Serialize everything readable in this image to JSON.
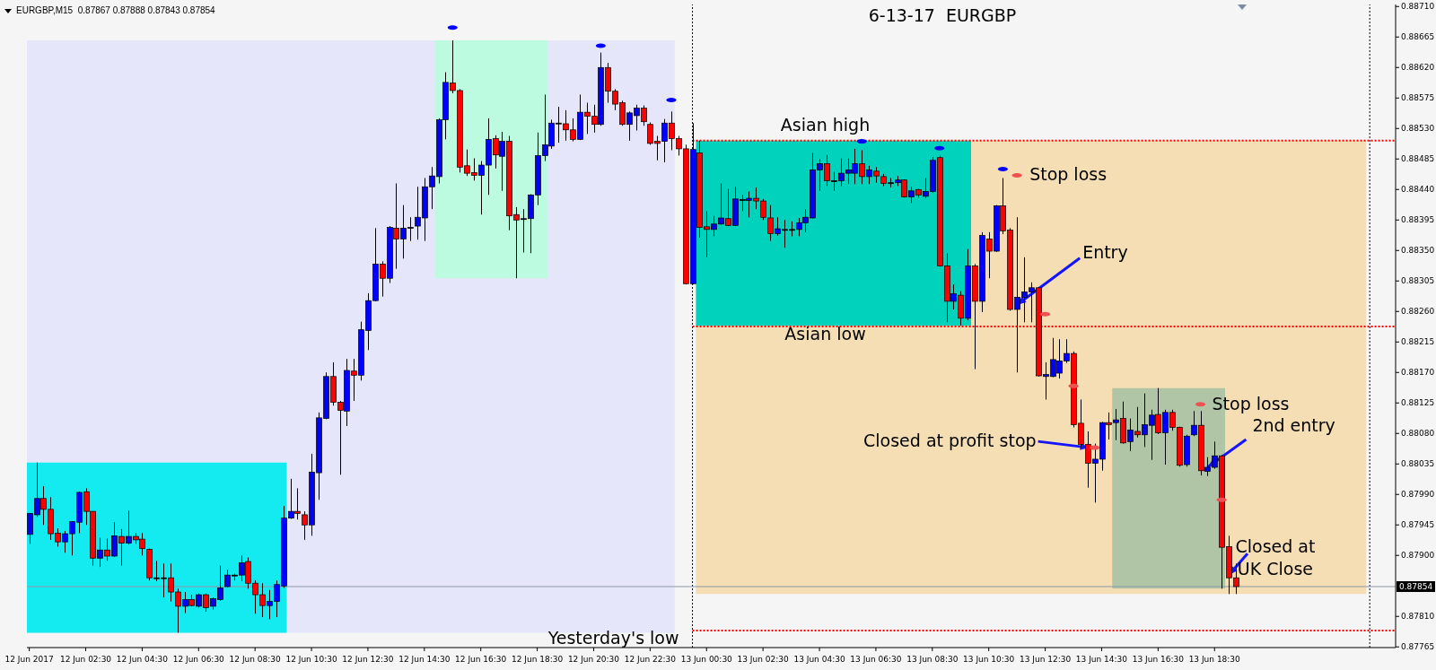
{
  "chart_data": {
    "type": "candlestick",
    "title": "6-13-17  EURGBP",
    "annotations": [
      "EURGBP,M15  0.87867 0.87888 0.87843 0.87854",
      {
        "text": "Entry",
        "x": "2017-06-13T11:30",
        "y": 0.8827
      },
      {
        "text": "Stop loss",
        "x": "2017-06-13T11:30",
        "y": 0.88461
      },
      {
        "text": "Stop loss",
        "x": "2017-06-13T18:00",
        "y": 0.88123
      },
      {
        "text": "Closed at profit stop",
        "x": "2017-06-13T14:15",
        "y": 0.88059
      },
      {
        "text": "2nd entry",
        "x": "2017-06-13T18:15",
        "y": 0.8803
      },
      {
        "text": "Closed at UK Close",
        "x": "2017-06-13T19:00",
        "y": 0.87871
      }
    ],
    "x": [
      "2017-06-12T00:30",
      "2017-06-12T00:45",
      "2017-06-12T01:00",
      "2017-06-12T01:15",
      "2017-06-12T01:30",
      "2017-06-12T01:45",
      "2017-06-12T02:00",
      "2017-06-12T02:15",
      "2017-06-12T02:30",
      "2017-06-12T02:45",
      "2017-06-12T03:00",
      "2017-06-12T03:15",
      "2017-06-12T03:30",
      "2017-06-12T03:45",
      "2017-06-12T04:00",
      "2017-06-12T04:15",
      "2017-06-12T04:30",
      "2017-06-12T04:45",
      "2017-06-12T05:00",
      "2017-06-12T05:15",
      "2017-06-12T05:30",
      "2017-06-12T05:45",
      "2017-06-12T06:00",
      "2017-06-12T06:15",
      "2017-06-12T06:30",
      "2017-06-12T06:45",
      "2017-06-12T07:00",
      "2017-06-12T07:15",
      "2017-06-12T07:30",
      "2017-06-12T07:45",
      "2017-06-12T08:00",
      "2017-06-12T08:15",
      "2017-06-12T08:30",
      "2017-06-12T08:45",
      "2017-06-12T09:00",
      "2017-06-12T09:15",
      "2017-06-12T09:30",
      "2017-06-12T09:45",
      "2017-06-12T10:00",
      "2017-06-12T10:15",
      "2017-06-12T10:30",
      "2017-06-12T10:45",
      "2017-06-12T11:00",
      "2017-06-12T11:15",
      "2017-06-12T11:30",
      "2017-06-12T11:45",
      "2017-06-12T12:00",
      "2017-06-12T12:15",
      "2017-06-12T12:30",
      "2017-06-12T12:45",
      "2017-06-12T13:00",
      "2017-06-12T13:15",
      "2017-06-12T13:30",
      "2017-06-12T13:45",
      "2017-06-12T14:00",
      "2017-06-12T14:15",
      "2017-06-12T14:30",
      "2017-06-12T14:45",
      "2017-06-12T15:00",
      "2017-06-12T15:15",
      "2017-06-12T15:30",
      "2017-06-12T15:45",
      "2017-06-12T16:00",
      "2017-06-12T16:15",
      "2017-06-12T16:30",
      "2017-06-12T16:45",
      "2017-06-12T17:00",
      "2017-06-12T17:15",
      "2017-06-12T17:30",
      "2017-06-12T17:45",
      "2017-06-12T18:00",
      "2017-06-12T18:15",
      "2017-06-12T18:30",
      "2017-06-12T18:45",
      "2017-06-12T19:00",
      "2017-06-12T19:15",
      "2017-06-12T19:30",
      "2017-06-12T19:45",
      "2017-06-12T20:00",
      "2017-06-12T20:15",
      "2017-06-12T20:30",
      "2017-06-12T20:45",
      "2017-06-12T21:00",
      "2017-06-12T21:15",
      "2017-06-12T21:30",
      "2017-06-12T21:45",
      "2017-06-12T22:00",
      "2017-06-12T22:15",
      "2017-06-12T22:30",
      "2017-06-12T22:45",
      "2017-06-12T23:00",
      "2017-06-12T23:15",
      "2017-06-12T23:30",
      "2017-06-12T23:45",
      "2017-06-13T00:00",
      "2017-06-13T00:15",
      "2017-06-13T00:30",
      "2017-06-13T00:45",
      "2017-06-13T01:00",
      "2017-06-13T01:15",
      "2017-06-13T01:30",
      "2017-06-13T01:45",
      "2017-06-13T02:00",
      "2017-06-13T02:15",
      "2017-06-13T02:30",
      "2017-06-13T02:45",
      "2017-06-13T03:00",
      "2017-06-13T03:15",
      "2017-06-13T03:30",
      "2017-06-13T03:45",
      "2017-06-13T04:00",
      "2017-06-13T04:15",
      "2017-06-13T04:30",
      "2017-06-13T04:45",
      "2017-06-13T05:00",
      "2017-06-13T05:15",
      "2017-06-13T05:30",
      "2017-06-13T05:45",
      "2017-06-13T06:00",
      "2017-06-13T06:15",
      "2017-06-13T06:30",
      "2017-06-13T06:45",
      "2017-06-13T07:00",
      "2017-06-13T07:15",
      "2017-06-13T07:30",
      "2017-06-13T07:45",
      "2017-06-13T08:00",
      "2017-06-13T08:15",
      "2017-06-13T08:30",
      "2017-06-13T08:45",
      "2017-06-13T09:00",
      "2017-06-13T09:15",
      "2017-06-13T09:30",
      "2017-06-13T09:45",
      "2017-06-13T10:00",
      "2017-06-13T10:15",
      "2017-06-13T10:30",
      "2017-06-13T10:45",
      "2017-06-13T11:00",
      "2017-06-13T11:15",
      "2017-06-13T11:30",
      "2017-06-13T11:45",
      "2017-06-13T12:00",
      "2017-06-13T12:15",
      "2017-06-13T12:30",
      "2017-06-13T12:45",
      "2017-06-13T13:00",
      "2017-06-13T13:15",
      "2017-06-13T13:30",
      "2017-06-13T13:45",
      "2017-06-13T14:00",
      "2017-06-13T14:15",
      "2017-06-13T14:30",
      "2017-06-13T14:45",
      "2017-06-13T15:00",
      "2017-06-13T15:15",
      "2017-06-13T15:30",
      "2017-06-13T15:45",
      "2017-06-13T16:00",
      "2017-06-13T16:15",
      "2017-06-13T16:30",
      "2017-06-13T16:45",
      "2017-06-13T17:00",
      "2017-06-13T17:15",
      "2017-06-13T17:30",
      "2017-06-13T17:45",
      "2017-06-13T18:00",
      "2017-06-13T18:15",
      "2017-06-13T18:30",
      "2017-06-13T18:45",
      "2017-06-13T19:00",
      "2017-06-13T19:15"
    ],
    "ohlc": [
      [
        0.87931,
        0.87962,
        0.87917,
        0.87962
      ],
      [
        0.8796,
        0.88037,
        0.87957,
        0.87984
      ],
      [
        0.87984,
        0.88002,
        0.87945,
        0.87968
      ],
      [
        0.87968,
        0.87986,
        0.87923,
        0.87932
      ],
      [
        0.87933,
        0.8794,
        0.87913,
        0.8792
      ],
      [
        0.8792,
        0.87936,
        0.87904,
        0.87932
      ],
      [
        0.87932,
        0.8795,
        0.879,
        0.8795
      ],
      [
        0.87949,
        0.87994,
        0.87933,
        0.87993
      ],
      [
        0.87994,
        0.87999,
        0.87945,
        0.87965
      ],
      [
        0.87965,
        0.87965,
        0.87885,
        0.87896
      ],
      [
        0.87896,
        0.87926,
        0.87883,
        0.87908
      ],
      [
        0.87908,
        0.87925,
        0.87892,
        0.87899
      ],
      [
        0.87899,
        0.87949,
        0.87898,
        0.87929
      ],
      [
        0.87928,
        0.87939,
        0.87885,
        0.87918
      ],
      [
        0.87918,
        0.87966,
        0.87916,
        0.87928
      ],
      [
        0.87928,
        0.87933,
        0.87917,
        0.87923
      ],
      [
        0.87924,
        0.87933,
        0.879,
        0.8791
      ],
      [
        0.87909,
        0.8791,
        0.87863,
        0.87867
      ],
      [
        0.87867,
        0.87892,
        0.87862,
        0.87867
      ],
      [
        0.87867,
        0.87888,
        0.87838,
        0.87867
      ],
      [
        0.87867,
        0.87888,
        0.87832,
        0.87846
      ],
      [
        0.87846,
        0.87851,
        0.87786,
        0.87825
      ],
      [
        0.87825,
        0.87846,
        0.87815,
        0.87835
      ],
      [
        0.87835,
        0.87842,
        0.87825,
        0.87826
      ],
      [
        0.87825,
        0.87844,
        0.87823,
        0.87842
      ],
      [
        0.87842,
        0.87844,
        0.87817,
        0.87823
      ],
      [
        0.87825,
        0.87838,
        0.8782,
        0.87836
      ],
      [
        0.87835,
        0.87885,
        0.87833,
        0.87852
      ],
      [
        0.87854,
        0.87879,
        0.87853,
        0.87871
      ],
      [
        0.87871,
        0.87873,
        0.87863,
        0.87871
      ],
      [
        0.87871,
        0.879,
        0.87862,
        0.87889
      ],
      [
        0.87891,
        0.87897,
        0.87851,
        0.87859
      ],
      [
        0.87859,
        0.87863,
        0.87814,
        0.87842
      ],
      [
        0.87842,
        0.87859,
        0.87809,
        0.87826
      ],
      [
        0.87826,
        0.87849,
        0.87806,
        0.87832
      ],
      [
        0.87832,
        0.87863,
        0.87809,
        0.87857
      ],
      [
        0.87855,
        0.87973,
        0.87852,
        0.87955
      ],
      [
        0.87955,
        0.88013,
        0.87954,
        0.87965
      ],
      [
        0.87965,
        0.87999,
        0.87953,
        0.87962
      ],
      [
        0.8796,
        0.87965,
        0.87923,
        0.87945
      ],
      [
        0.87945,
        0.8805,
        0.87929,
        0.88023
      ],
      [
        0.88022,
        0.88111,
        0.87982,
        0.88103
      ],
      [
        0.88102,
        0.8817,
        0.88101,
        0.88164
      ],
      [
        0.88164,
        0.88185,
        0.88121,
        0.88126
      ],
      [
        0.88126,
        0.88128,
        0.88019,
        0.88114
      ],
      [
        0.88113,
        0.8819,
        0.88091,
        0.88173
      ],
      [
        0.88172,
        0.8819,
        0.88128,
        0.88166
      ],
      [
        0.88166,
        0.88245,
        0.88158,
        0.88233
      ],
      [
        0.88232,
        0.88287,
        0.88203,
        0.88276
      ],
      [
        0.88276,
        0.88383,
        0.88275,
        0.8833
      ],
      [
        0.8833,
        0.88334,
        0.88282,
        0.88309
      ],
      [
        0.88309,
        0.88386,
        0.88302,
        0.88384
      ],
      [
        0.88383,
        0.88449,
        0.88323,
        0.88367
      ],
      [
        0.88367,
        0.88417,
        0.88338,
        0.88383
      ],
      [
        0.88384,
        0.88399,
        0.88364,
        0.88384
      ],
      [
        0.88386,
        0.88444,
        0.88366,
        0.88399
      ],
      [
        0.88398,
        0.88457,
        0.88364,
        0.88444
      ],
      [
        0.88444,
        0.88473,
        0.88411,
        0.8846
      ],
      [
        0.88459,
        0.88545,
        0.88449,
        0.88543
      ],
      [
        0.88543,
        0.88613,
        0.88514,
        0.88598
      ],
      [
        0.88597,
        0.8866,
        0.88582,
        0.88586
      ],
      [
        0.88586,
        0.88588,
        0.88465,
        0.88473
      ],
      [
        0.88475,
        0.88499,
        0.8846,
        0.88464
      ],
      [
        0.88465,
        0.88486,
        0.88453,
        0.88461
      ],
      [
        0.88461,
        0.88482,
        0.88403,
        0.88476
      ],
      [
        0.88476,
        0.88545,
        0.88432,
        0.88514
      ],
      [
        0.88515,
        0.8852,
        0.88471,
        0.88491
      ],
      [
        0.88489,
        0.88525,
        0.88438,
        0.88511
      ],
      [
        0.88511,
        0.88519,
        0.8838,
        0.88401
      ],
      [
        0.88403,
        0.88414,
        0.88309,
        0.88395
      ],
      [
        0.88397,
        0.88411,
        0.88347,
        0.88397
      ],
      [
        0.88397,
        0.88433,
        0.88346,
        0.88432
      ],
      [
        0.88432,
        0.88524,
        0.88417,
        0.8849
      ],
      [
        0.8849,
        0.8858,
        0.88482,
        0.88506
      ],
      [
        0.88504,
        0.88543,
        0.885,
        0.88538
      ],
      [
        0.88538,
        0.88562,
        0.88509,
        0.88538
      ],
      [
        0.88537,
        0.88557,
        0.88512,
        0.88528
      ],
      [
        0.88528,
        0.88545,
        0.88511,
        0.88514
      ],
      [
        0.88514,
        0.8858,
        0.88513,
        0.88554
      ],
      [
        0.88554,
        0.88568,
        0.88522,
        0.88548
      ],
      [
        0.88548,
        0.88565,
        0.88524,
        0.88536
      ],
      [
        0.88536,
        0.88642,
        0.88534,
        0.8862
      ],
      [
        0.8862,
        0.88627,
        0.88568,
        0.88585
      ],
      [
        0.88585,
        0.88588,
        0.88557,
        0.88566
      ],
      [
        0.88568,
        0.88571,
        0.88534,
        0.88536
      ],
      [
        0.88536,
        0.88555,
        0.88512,
        0.88553
      ],
      [
        0.88549,
        0.88565,
        0.88527,
        0.8856
      ],
      [
        0.8856,
        0.88564,
        0.88534,
        0.8854
      ],
      [
        0.88536,
        0.88539,
        0.88506,
        0.88508
      ],
      [
        0.88511,
        0.88519,
        0.88483,
        0.88508
      ],
      [
        0.88511,
        0.88544,
        0.8848,
        0.88538
      ],
      [
        0.88538,
        0.88555,
        0.88498,
        0.88515
      ],
      [
        0.88515,
        0.88519,
        0.8849,
        0.885
      ],
      [
        0.885,
        0.88506,
        0.883,
        0.88301
      ],
      [
        0.88301,
        0.88538,
        0.883,
        0.88499
      ],
      [
        0.88494,
        0.88512,
        0.88369,
        0.88384
      ],
      [
        0.88385,
        0.88408,
        0.8834,
        0.88381
      ],
      [
        0.88381,
        0.88401,
        0.88371,
        0.88389
      ],
      [
        0.88389,
        0.88449,
        0.88388,
        0.88398
      ],
      [
        0.88397,
        0.88441,
        0.88386,
        0.88387
      ],
      [
        0.88387,
        0.88444,
        0.88386,
        0.88426
      ],
      [
        0.88425,
        0.88432,
        0.88408,
        0.88425
      ],
      [
        0.88424,
        0.88437,
        0.88399,
        0.88427
      ],
      [
        0.88427,
        0.88443,
        0.88411,
        0.88423
      ],
      [
        0.88423,
        0.88426,
        0.88395,
        0.88399
      ],
      [
        0.88398,
        0.88417,
        0.88364,
        0.88375
      ],
      [
        0.88375,
        0.88399,
        0.88372,
        0.88382
      ],
      [
        0.88381,
        0.88395,
        0.88354,
        0.88381
      ],
      [
        0.88381,
        0.88393,
        0.88371,
        0.88381
      ],
      [
        0.88381,
        0.88398,
        0.88371,
        0.88391
      ],
      [
        0.88391,
        0.88411,
        0.88377,
        0.88399
      ],
      [
        0.88398,
        0.88494,
        0.88397,
        0.88469
      ],
      [
        0.88469,
        0.88485,
        0.88438,
        0.88478
      ],
      [
        0.88478,
        0.88491,
        0.88445,
        0.88453
      ],
      [
        0.88453,
        0.88466,
        0.88438,
        0.88453
      ],
      [
        0.88453,
        0.88486,
        0.88445,
        0.88464
      ],
      [
        0.88464,
        0.88486,
        0.88448,
        0.88469
      ],
      [
        0.88464,
        0.885,
        0.88448,
        0.88478
      ],
      [
        0.88478,
        0.88498,
        0.88448,
        0.88459
      ],
      [
        0.88459,
        0.88475,
        0.88448,
        0.88469
      ],
      [
        0.88467,
        0.88473,
        0.8845,
        0.8846
      ],
      [
        0.88459,
        0.88463,
        0.88445,
        0.88449
      ],
      [
        0.8845,
        0.88457,
        0.88443,
        0.8845
      ],
      [
        0.8845,
        0.8846,
        0.88445,
        0.88454
      ],
      [
        0.88454,
        0.88455,
        0.88428,
        0.88429
      ],
      [
        0.88429,
        0.88444,
        0.8842,
        0.88438
      ],
      [
        0.8844,
        0.88441,
        0.88428,
        0.88432
      ],
      [
        0.8843,
        0.88457,
        0.88427,
        0.88437
      ],
      [
        0.88437,
        0.88488,
        0.88435,
        0.88483
      ],
      [
        0.88487,
        0.8849,
        0.88326,
        0.88327
      ],
      [
        0.88327,
        0.88346,
        0.88244,
        0.88275
      ],
      [
        0.88275,
        0.883,
        0.88263,
        0.88286
      ],
      [
        0.88284,
        0.8829,
        0.88239,
        0.8825
      ],
      [
        0.8825,
        0.88352,
        0.88247,
        0.88327
      ],
      [
        0.88327,
        0.8833,
        0.88175,
        0.88275
      ],
      [
        0.88275,
        0.88377,
        0.88259,
        0.88372
      ],
      [
        0.88367,
        0.88377,
        0.88309,
        0.88349
      ],
      [
        0.88349,
        0.88417,
        0.88348,
        0.88416
      ],
      [
        0.88416,
        0.88457,
        0.88374,
        0.88379
      ],
      [
        0.8838,
        0.88383,
        0.88261,
        0.88263
      ],
      [
        0.88263,
        0.88399,
        0.8817,
        0.88281
      ],
      [
        0.88281,
        0.8834,
        0.88244,
        0.88289
      ],
      [
        0.88289,
        0.88303,
        0.88244,
        0.88295
      ],
      [
        0.88295,
        0.88296,
        0.88164,
        0.88165
      ],
      [
        0.88164,
        0.88185,
        0.8813,
        0.88167
      ],
      [
        0.88164,
        0.88221,
        0.88163,
        0.88189
      ],
      [
        0.88169,
        0.88219,
        0.88161,
        0.88187
      ],
      [
        0.88187,
        0.88219,
        0.88184,
        0.88198
      ],
      [
        0.88198,
        0.88201,
        0.88089,
        0.88093
      ],
      [
        0.88095,
        0.8813,
        0.88059,
        0.88064
      ],
      [
        0.88064,
        0.88083,
        0.88,
        0.88036
      ],
      [
        0.88036,
        0.88065,
        0.87978,
        0.88042
      ],
      [
        0.88042,
        0.88097,
        0.88025,
        0.88096
      ],
      [
        0.88096,
        0.88111,
        0.88071,
        0.88093
      ],
      [
        0.88096,
        0.88116,
        0.8807,
        0.881
      ],
      [
        0.88102,
        0.88127,
        0.88065,
        0.88066
      ],
      [
        0.88068,
        0.88102,
        0.88054,
        0.88085
      ],
      [
        0.88083,
        0.88119,
        0.88074,
        0.88078
      ],
      [
        0.88078,
        0.88139,
        0.8806,
        0.88093
      ],
      [
        0.88092,
        0.88115,
        0.88041,
        0.88107
      ],
      [
        0.88108,
        0.88147,
        0.88079,
        0.88081
      ],
      [
        0.88081,
        0.88115,
        0.88034,
        0.88111
      ],
      [
        0.88111,
        0.88115,
        0.88084,
        0.88089
      ],
      [
        0.88089,
        0.8809,
        0.88031,
        0.88033
      ],
      [
        0.88034,
        0.88078,
        0.88031,
        0.88076
      ],
      [
        0.88078,
        0.88113,
        0.88076,
        0.88092
      ],
      [
        0.88092,
        0.88113,
        0.88018,
        0.88025
      ],
      [
        0.88024,
        0.88045,
        0.88017,
        0.8803
      ],
      [
        0.8803,
        0.88068,
        0.88028,
        0.88047
      ],
      [
        0.88047,
        0.88048,
        0.87851,
        0.87912
      ],
      [
        0.87913,
        0.87929,
        0.87843,
        0.87867
      ],
      [
        0.87867,
        0.87888,
        0.87843,
        0.87854
      ]
    ],
    "colors": [
      "#0000ff",
      "#0000ff",
      "#ff0000",
      "#ff0000",
      "#ff0000",
      "#0000ff",
      "#0000ff",
      "#0000ff",
      "#ff0000",
      "#ff0000",
      "#0000ff",
      "#ff0000",
      "#0000ff",
      "#ff0000",
      "#0000ff",
      "#ff0000",
      "#ff0000",
      "#ff0000",
      "#000000",
      "#000000",
      "#ff0000",
      "#ff0000",
      "#0000ff",
      "#ff0000",
      "#0000ff",
      "#ff0000",
      "#0000ff",
      "#0000ff",
      "#0000ff",
      "#000000",
      "#0000ff",
      "#ff0000",
      "#ff0000",
      "#ff0000",
      "#0000ff",
      "#0000ff",
      "#0000ff",
      "#0000ff",
      "#ff0000",
      "#ff0000",
      "#0000ff",
      "#0000ff",
      "#0000ff",
      "#ff0000",
      "#ff0000",
      "#0000ff",
      "#ff0000",
      "#0000ff",
      "#0000ff",
      "#0000ff",
      "#ff0000",
      "#0000ff",
      "#ff0000",
      "#0000ff",
      "#000000",
      "#0000ff",
      "#0000ff",
      "#0000ff",
      "#0000ff",
      "#0000ff",
      "#ff0000",
      "#ff0000",
      "#ff0000",
      "#ff0000",
      "#0000ff",
      "#0000ff",
      "#ff0000",
      "#0000ff",
      "#ff0000",
      "#ff0000",
      "#000000",
      "#0000ff",
      "#0000ff",
      "#0000ff",
      "#0000ff",
      "#000000",
      "#ff0000",
      "#ff0000",
      "#0000ff",
      "#ff0000",
      "#ff0000",
      "#0000ff",
      "#ff0000",
      "#ff0000",
      "#ff0000",
      "#0000ff",
      "#0000ff",
      "#ff0000",
      "#ff0000",
      "#ff0000",
      "#0000ff",
      "#ff0000",
      "#ff0000",
      "#ff0000",
      "#0000ff",
      "#ff0000",
      "#ff0000",
      "#0000ff",
      "#0000ff",
      "#ff0000",
      "#0000ff",
      "#000000",
      "#0000ff",
      "#ff0000",
      "#ff0000",
      "#ff0000",
      "#0000ff",
      "#000000",
      "#000000",
      "#0000ff",
      "#0000ff",
      "#0000ff",
      "#0000ff",
      "#ff0000",
      "#000000",
      "#0000ff",
      "#0000ff",
      "#0000ff",
      "#ff0000",
      "#0000ff",
      "#ff0000",
      "#ff0000",
      "#000000",
      "#0000ff",
      "#ff0000",
      "#0000ff",
      "#ff0000",
      "#0000ff",
      "#0000ff",
      "#ff0000",
      "#ff0000",
      "#0000ff",
      "#ff0000",
      "#0000ff",
      "#ff0000",
      "#0000ff",
      "#ff0000",
      "#0000ff",
      "#ff0000",
      "#ff0000",
      "#0000ff",
      "#0000ff",
      "#0000ff",
      "#ff0000",
      "#0000ff",
      "#0000ff",
      "#0000ff",
      "#0000ff",
      "#ff0000",
      "#ff0000",
      "#ff0000",
      "#0000ff",
      "#0000ff",
      "#ff0000",
      "#0000ff",
      "#ff0000",
      "#0000ff",
      "#ff0000",
      "#0000ff",
      "#0000ff",
      "#ff0000",
      "#0000ff",
      "#ff0000",
      "#ff0000",
      "#0000ff",
      "#0000ff",
      "#ff0000",
      "#0000ff",
      "#0000ff",
      "#ff0000",
      "#ff0000",
      "#ff0000"
    ],
    "series": [
      {
        "type": "scatter",
        "color": "#0000ff",
        "x": [
          "2017-06-12T15:30",
          "2017-06-12T20:45",
          "2017-06-12T23:15",
          "2017-06-13T06:00",
          "2017-06-13T08:45",
          "2017-06-13T11:00"
        ],
        "values": [
          0.88679,
          0.88652,
          0.88572,
          0.88511,
          0.88501,
          0.8847
        ]
      },
      {
        "type": "scatter",
        "color": "#f05050",
        "x": [
          "2017-06-13T11:30",
          "2017-06-13T12:30",
          "2017-06-13T13:30",
          "2017-06-13T14:15",
          "2017-06-13T18:00",
          "2017-06-13T18:45"
        ],
        "values": [
          0.88461,
          0.88256,
          0.8815,
          0.88059,
          0.88123,
          0.87982
        ]
      }
    ],
    "bands": [
      {
        "axis": "x",
        "from": "2017-06-12T00:30",
        "to": "2017-06-12T23:15",
        "color": "#e6e6fa"
      },
      {
        "axis": "x",
        "from": "2017-06-12T00:30",
        "to": "2017-06-12T09:30",
        "color": "#14ebf0"
      },
      {
        "axis": "x",
        "from": "2017-06-12T15:00",
        "to": "2017-06-12T18:45",
        "color": "#bdfbe0"
      },
      {
        "axis": "x",
        "from": "2017-06-13T00:15",
        "to": "2017-06-13T23:45",
        "color": "#f5deb3"
      },
      {
        "axis": "x",
        "from": "2017-06-13T00:15",
        "to": "2017-06-13T09:45",
        "color": "#00d2bc"
      },
      {
        "axis": "x",
        "from": "2017-06-13T15:00",
        "to": "2017-06-13T18:45",
        "color": "#afc5a6"
      }
    ],
    "ref_lines": [
      {
        "axis": "x",
        "value": "2017-06-13T00:00",
        "line_style": "dotted",
        "color": "#000000"
      },
      {
        "axis": "x",
        "value": "2017-06-14T00:00",
        "line_style": "dotted",
        "color": "#000000"
      },
      {
        "axis": "y",
        "value": 0.88512,
        "label": "Asian high",
        "line_style": "dotted",
        "color": "#ff0000"
      },
      {
        "axis": "y",
        "value": 0.88238,
        "label": "Asian low",
        "line_style": "dotted",
        "color": "#ff0000"
      },
      {
        "axis": "y",
        "value": 0.87789,
        "label": "Yesterday's low",
        "line_style": "dotted",
        "color": "#ff0000"
      },
      {
        "axis": "y",
        "value": 0.87854,
        "label": "0.87854",
        "color": "#8c98a6"
      }
    ],
    "xlim": [
      "2017-06-12T00:25",
      "2017-06-14T00:55"
    ],
    "xticks": [
      {
        "value": "2017-06-12T00:30",
        "label": "12 Jun 2017"
      },
      {
        "value": "2017-06-12T02:30",
        "label": "12 Jun 02:30"
      },
      {
        "value": "2017-06-12T04:30",
        "label": "12 Jun 04:30"
      },
      {
        "value": "2017-06-12T06:30",
        "label": "12 Jun 06:30"
      },
      {
        "value": "2017-06-12T08:30",
        "label": "12 Jun 08:30"
      },
      {
        "value": "2017-06-12T10:30",
        "label": "12 Jun 10:30"
      },
      {
        "value": "2017-06-12T12:30",
        "label": "12 Jun 12:30"
      },
      {
        "value": "2017-06-12T14:30",
        "label": "12 Jun 14:30"
      },
      {
        "value": "2017-06-12T16:30",
        "label": "12 Jun 16:30"
      },
      {
        "value": "2017-06-12T18:30",
        "label": "12 Jun 18:30"
      },
      {
        "value": "2017-06-12T20:30",
        "label": "12 Jun 20:30"
      },
      {
        "value": "2017-06-12T22:30",
        "label": "12 Jun 22:30"
      },
      {
        "value": "2017-06-13T00:30",
        "label": "13 Jun 00:30"
      },
      {
        "value": "2017-06-13T02:30",
        "label": "13 Jun 02:30"
      },
      {
        "value": "2017-06-13T04:30",
        "label": "13 Jun 04:30"
      },
      {
        "value": "2017-06-13T06:30",
        "label": "13 Jun 06:30"
      },
      {
        "value": "2017-06-13T08:30",
        "label": "13 Jun 08:30"
      },
      {
        "value": "2017-06-13T10:30",
        "label": "13 Jun 10:30"
      },
      {
        "value": "2017-06-13T12:30",
        "label": "13 Jun 12:30"
      },
      {
        "value": "2017-06-13T14:30",
        "label": "13 Jun 14:30"
      },
      {
        "value": "2017-06-13T16:30",
        "label": "13 Jun 16:30"
      },
      {
        "value": "2017-06-13T18:30",
        "label": "13 Jun 18:30"
      }
    ],
    "ylim": [
      0.87764,
      0.88713
    ],
    "yticks": [
      0.87765,
      {
        "value": 0.8781,
        "label": "0.87810"
      },
      {
        "value": 0.879,
        "label": "0.87900"
      },
      0.87945,
      {
        "value": 0.8799,
        "label": "0.87990"
      },
      0.88035,
      {
        "value": 0.8808,
        "label": "0.88080"
      },
      0.88125,
      {
        "value": 0.8817,
        "label": "0.88170"
      },
      0.88215,
      {
        "value": 0.8826,
        "label": "0.88260"
      },
      0.88305,
      {
        "value": 0.8835,
        "label": "0.88350"
      },
      0.88395,
      {
        "value": 0.8844,
        "label": "0.88440"
      },
      0.88485,
      {
        "value": 0.8853,
        "label": "0.88530"
      },
      0.88575,
      {
        "value": 0.8862,
        "label": "0.88620"
      },
      0.88665,
      {
        "value": 0.8871,
        "label": "0.88710"
      }
    ]
  }
}
